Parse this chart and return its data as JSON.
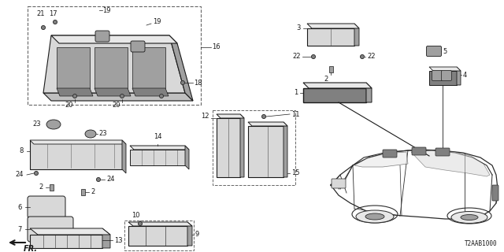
{
  "bg_color": "#ffffff",
  "part_number_code": "T2AAB1000",
  "fig_width": 6.4,
  "fig_height": 3.2,
  "dpi": 100,
  "line_color": "#1a1a1a",
  "text_color": "#1a1a1a",
  "dashed_box_color": "#666666",
  "car_color": "#2a2a2a",
  "gray1": "#c0c0c0",
  "gray2": "#a0a0a0",
  "gray3": "#808080",
  "gray4": "#d8d8d8",
  "gray5": "#e8e8e8"
}
